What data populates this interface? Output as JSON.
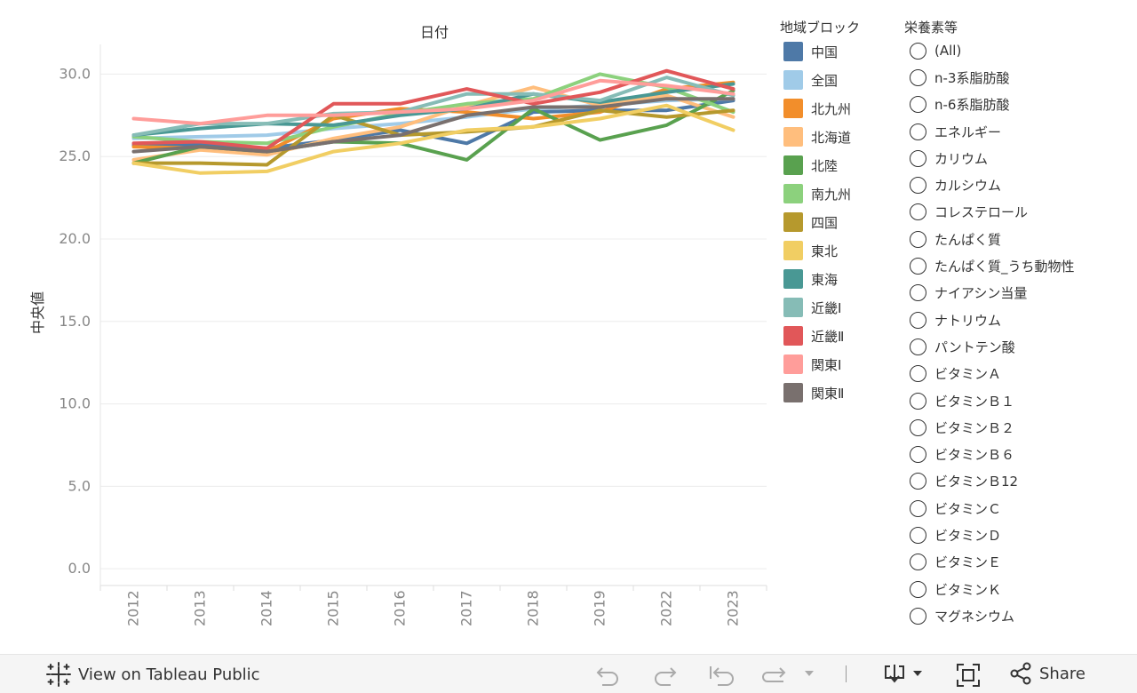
{
  "chart_data": {
    "type": "line",
    "title": "日付",
    "ylabel": "中央値",
    "xlabel": "",
    "x": [
      "2012",
      "2013",
      "2014",
      "2015",
      "2016",
      "2017",
      "2018",
      "2019",
      "2022",
      "2023"
    ],
    "yticks": [
      "0.0",
      "5.0",
      "10.0",
      "15.0",
      "20.0",
      "25.0",
      "30.0"
    ],
    "ylim": [
      -0.8,
      31.8
    ],
    "grid": true,
    "legend_position": "right",
    "series": [
      {
        "name": "中国",
        "color": "#4e79a7",
        "values": [
          25.7,
          25.7,
          25.5,
          26.0,
          26.6,
          25.8,
          27.7,
          27.8,
          27.8,
          28.4
        ]
      },
      {
        "name": "全国",
        "color": "#a0cbe8",
        "values": [
          26.1,
          26.2,
          26.3,
          26.7,
          27.0,
          27.4,
          27.9,
          28.1,
          28.4,
          28.5
        ]
      },
      {
        "name": "北九州",
        "color": "#f28e2b",
        "values": [
          25.6,
          25.5,
          25.3,
          27.3,
          27.9,
          27.7,
          27.3,
          27.7,
          29.1,
          29.5
        ]
      },
      {
        "name": "北海道",
        "color": "#ffbe7d",
        "values": [
          24.8,
          25.4,
          25.1,
          26.1,
          26.8,
          28.1,
          29.2,
          28.1,
          28.7,
          27.4
        ]
      },
      {
        "name": "北陸",
        "color": "#59a14f",
        "values": [
          24.6,
          25.6,
          25.3,
          25.9,
          25.8,
          24.8,
          27.9,
          26.0,
          26.9,
          29.0
        ]
      },
      {
        "name": "南九州",
        "color": "#8cd17d",
        "values": [
          26.2,
          25.9,
          25.8,
          26.8,
          27.6,
          28.2,
          28.5,
          30.0,
          29.2,
          27.7
        ]
      },
      {
        "name": "四国",
        "color": "#b6992d",
        "values": [
          24.6,
          24.6,
          24.5,
          27.5,
          26.3,
          26.5,
          26.8,
          27.8,
          27.4,
          27.8
        ]
      },
      {
        "name": "東北",
        "color": "#f1ce63",
        "values": [
          24.6,
          24.0,
          24.1,
          25.3,
          25.8,
          26.6,
          26.8,
          27.3,
          28.1,
          26.6
        ]
      },
      {
        "name": "東海",
        "color": "#499894",
        "values": [
          26.3,
          26.7,
          27.0,
          26.9,
          27.5,
          27.9,
          28.8,
          28.3,
          28.9,
          29.4
        ]
      },
      {
        "name": "近畿Ⅰ",
        "color": "#86bcb6",
        "values": [
          26.3,
          27.0,
          27.0,
          27.6,
          27.7,
          28.8,
          28.8,
          28.4,
          29.8,
          28.7
        ]
      },
      {
        "name": "近畿Ⅱ",
        "color": "#e15759",
        "values": [
          25.8,
          25.9,
          25.5,
          28.2,
          28.2,
          29.1,
          28.2,
          28.9,
          30.2,
          29.1
        ]
      },
      {
        "name": "関東Ⅰ",
        "color": "#ff9d9a",
        "values": [
          27.3,
          27.0,
          27.5,
          27.5,
          27.7,
          27.9,
          28.4,
          29.6,
          29.3,
          28.8
        ]
      },
      {
        "name": "関東Ⅱ",
        "color": "#79706e",
        "values": [
          25.3,
          25.6,
          25.3,
          25.9,
          26.3,
          27.5,
          28.0,
          28.0,
          28.5,
          28.5
        ]
      }
    ]
  },
  "legend": {
    "title": "地域ブロック",
    "items": [
      {
        "label": "中国",
        "color": "#4e79a7"
      },
      {
        "label": "全国",
        "color": "#a0cbe8"
      },
      {
        "label": "北九州",
        "color": "#f28e2b"
      },
      {
        "label": "北海道",
        "color": "#ffbe7d"
      },
      {
        "label": "北陸",
        "color": "#59a14f"
      },
      {
        "label": "南九州",
        "color": "#8cd17d"
      },
      {
        "label": "四国",
        "color": "#b6992d"
      },
      {
        "label": "東北",
        "color": "#f1ce63"
      },
      {
        "label": "東海",
        "color": "#499894"
      },
      {
        "label": "近畿Ⅰ",
        "color": "#86bcb6"
      },
      {
        "label": "近畿Ⅱ",
        "color": "#e15759"
      },
      {
        "label": "関東Ⅰ",
        "color": "#ff9d9a"
      },
      {
        "label": "関東Ⅱ",
        "color": "#79706e"
      }
    ]
  },
  "filter": {
    "title": "栄養素等",
    "options": [
      "(All)",
      "n-3系脂肪酸",
      "n-6系脂肪酸",
      "エネルギー",
      "カリウム",
      "カルシウム",
      "コレステロール",
      "たんぱく質",
      "たんぱく質_うち動物性",
      "ナイアシン当量",
      "ナトリウム",
      "パントテン酸",
      "ビタミンＡ",
      "ビタミンＢ１",
      "ビタミンＢ２",
      "ビタミンＢ６",
      "ビタミンＢ12",
      "ビタミンＣ",
      "ビタミンＤ",
      "ビタミンＥ",
      "ビタミンＫ",
      "マグネシウム"
    ]
  },
  "toolbar": {
    "view_label": "View on Tableau Public",
    "share_label": "Share"
  }
}
